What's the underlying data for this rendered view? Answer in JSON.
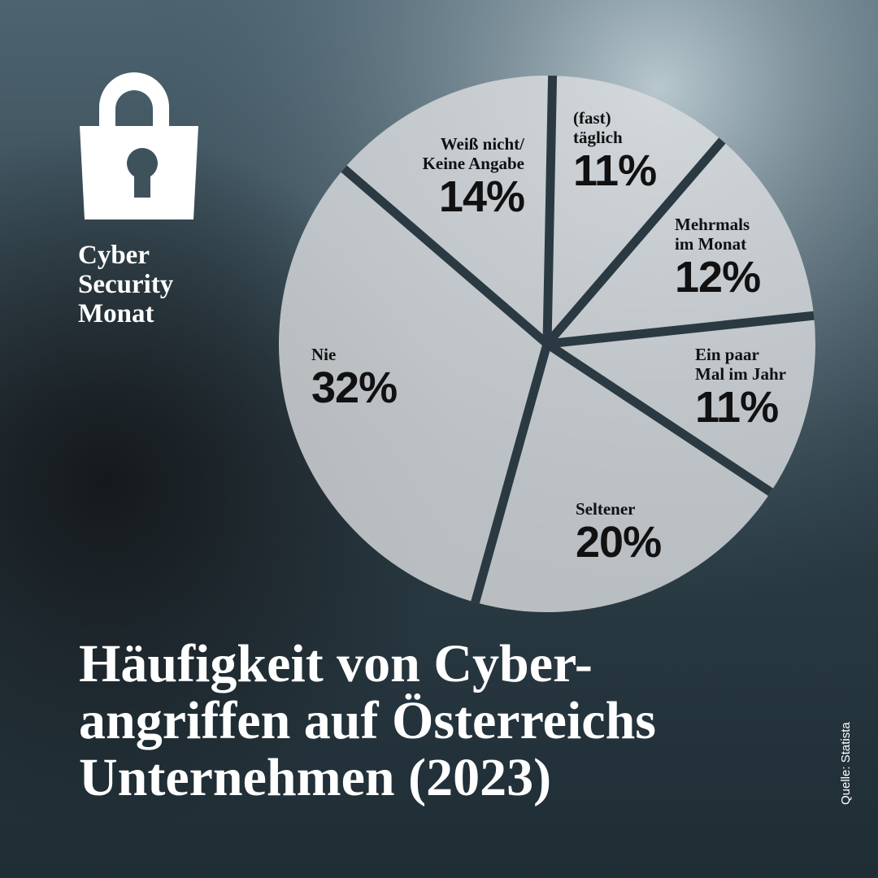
{
  "brand": "Cyber\nSecurity\nMonat",
  "source": "Quelle: Statista",
  "chart_data": {
    "type": "pie",
    "title": "Häufigkeit von Cyber-\nangriffen auf Österreichs\nUnternehmen (2023)",
    "categories": [
      "(fast)\ntäglich",
      "Mehrmals\nim Monat",
      "Ein paar\nMal im Jahr",
      "Seltener",
      "Nie",
      "Weiß nicht/\nKeine Angabe"
    ],
    "values": [
      11,
      12,
      11,
      20,
      32,
      14
    ],
    "value_labels": [
      "11%",
      "12%",
      "11%",
      "20%",
      "32%",
      "14%"
    ],
    "color": "#d9dcde"
  }
}
